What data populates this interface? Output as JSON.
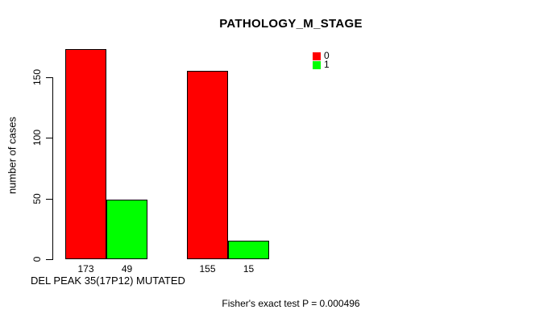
{
  "chart_data": {
    "type": "bar",
    "title": "PATHOLOGY_M_STAGE",
    "ylabel": "number of cases",
    "xlabel": "DEL PEAK 35(17P12) MUTATED",
    "footer": "Fisher's exact test P = 0.000496",
    "yticks": [
      0,
      50,
      100,
      150
    ],
    "ylim": [
      0,
      173
    ],
    "grid": false,
    "legend_position": "top-right",
    "series": [
      {
        "name": "0",
        "color": "#ff0000",
        "values": [
          173,
          155
        ]
      },
      {
        "name": "1",
        "color": "#00ff00",
        "values": [
          49,
          15
        ]
      }
    ],
    "bar_value_labels": [
      [
        173,
        49
      ],
      [
        155,
        15
      ]
    ]
  }
}
